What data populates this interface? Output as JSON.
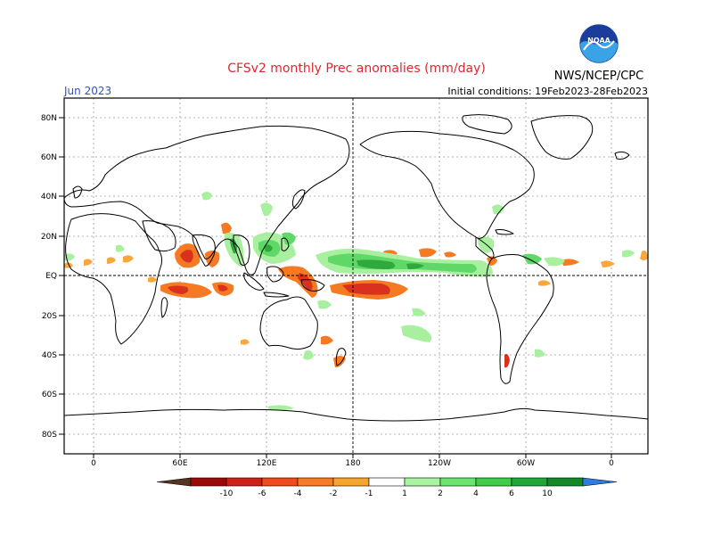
{
  "header": {
    "title": "CFSv2 monthly Prec anomalies (mm/day)",
    "target_month": "Jun 2023",
    "init_conditions": "Initial conditions: 19Feb2023-28Feb2023",
    "agency": "NWS/NCEP/CPC",
    "logo_text": "NOAA"
  },
  "map": {
    "lat_ticks": [
      "80N",
      "60N",
      "40N",
      "20N",
      "EQ",
      "20S",
      "40S",
      "60S",
      "80S"
    ],
    "lon_ticks": [
      "0",
      "60E",
      "120E",
      "180",
      "120W",
      "60W",
      "0"
    ]
  },
  "colorbar": {
    "labels": [
      "-10",
      "-6",
      "-4",
      "-2",
      "-1",
      "1",
      "2",
      "4",
      "6",
      "10"
    ],
    "colors": [
      "#5a3422",
      "#9b0a06",
      "#cd2116",
      "#f04a1d",
      "#f77c25",
      "#f8a52e",
      "#ffffff",
      "#a8f4a0",
      "#6ae670",
      "#3fcc48",
      "#1fa838",
      "#148a26",
      "#2b7de0"
    ]
  },
  "colors": {
    "dry_strong": "#d9311d",
    "dry_moderate": "#f57a22",
    "dry_light": "#f9a63b",
    "wet_light": "#a8f0a0",
    "wet_moderate": "#5fd868",
    "wet_strong": "#2fa83c",
    "coastline": "#000000",
    "title": "#e0262e",
    "month_label": "#3050c8"
  }
}
